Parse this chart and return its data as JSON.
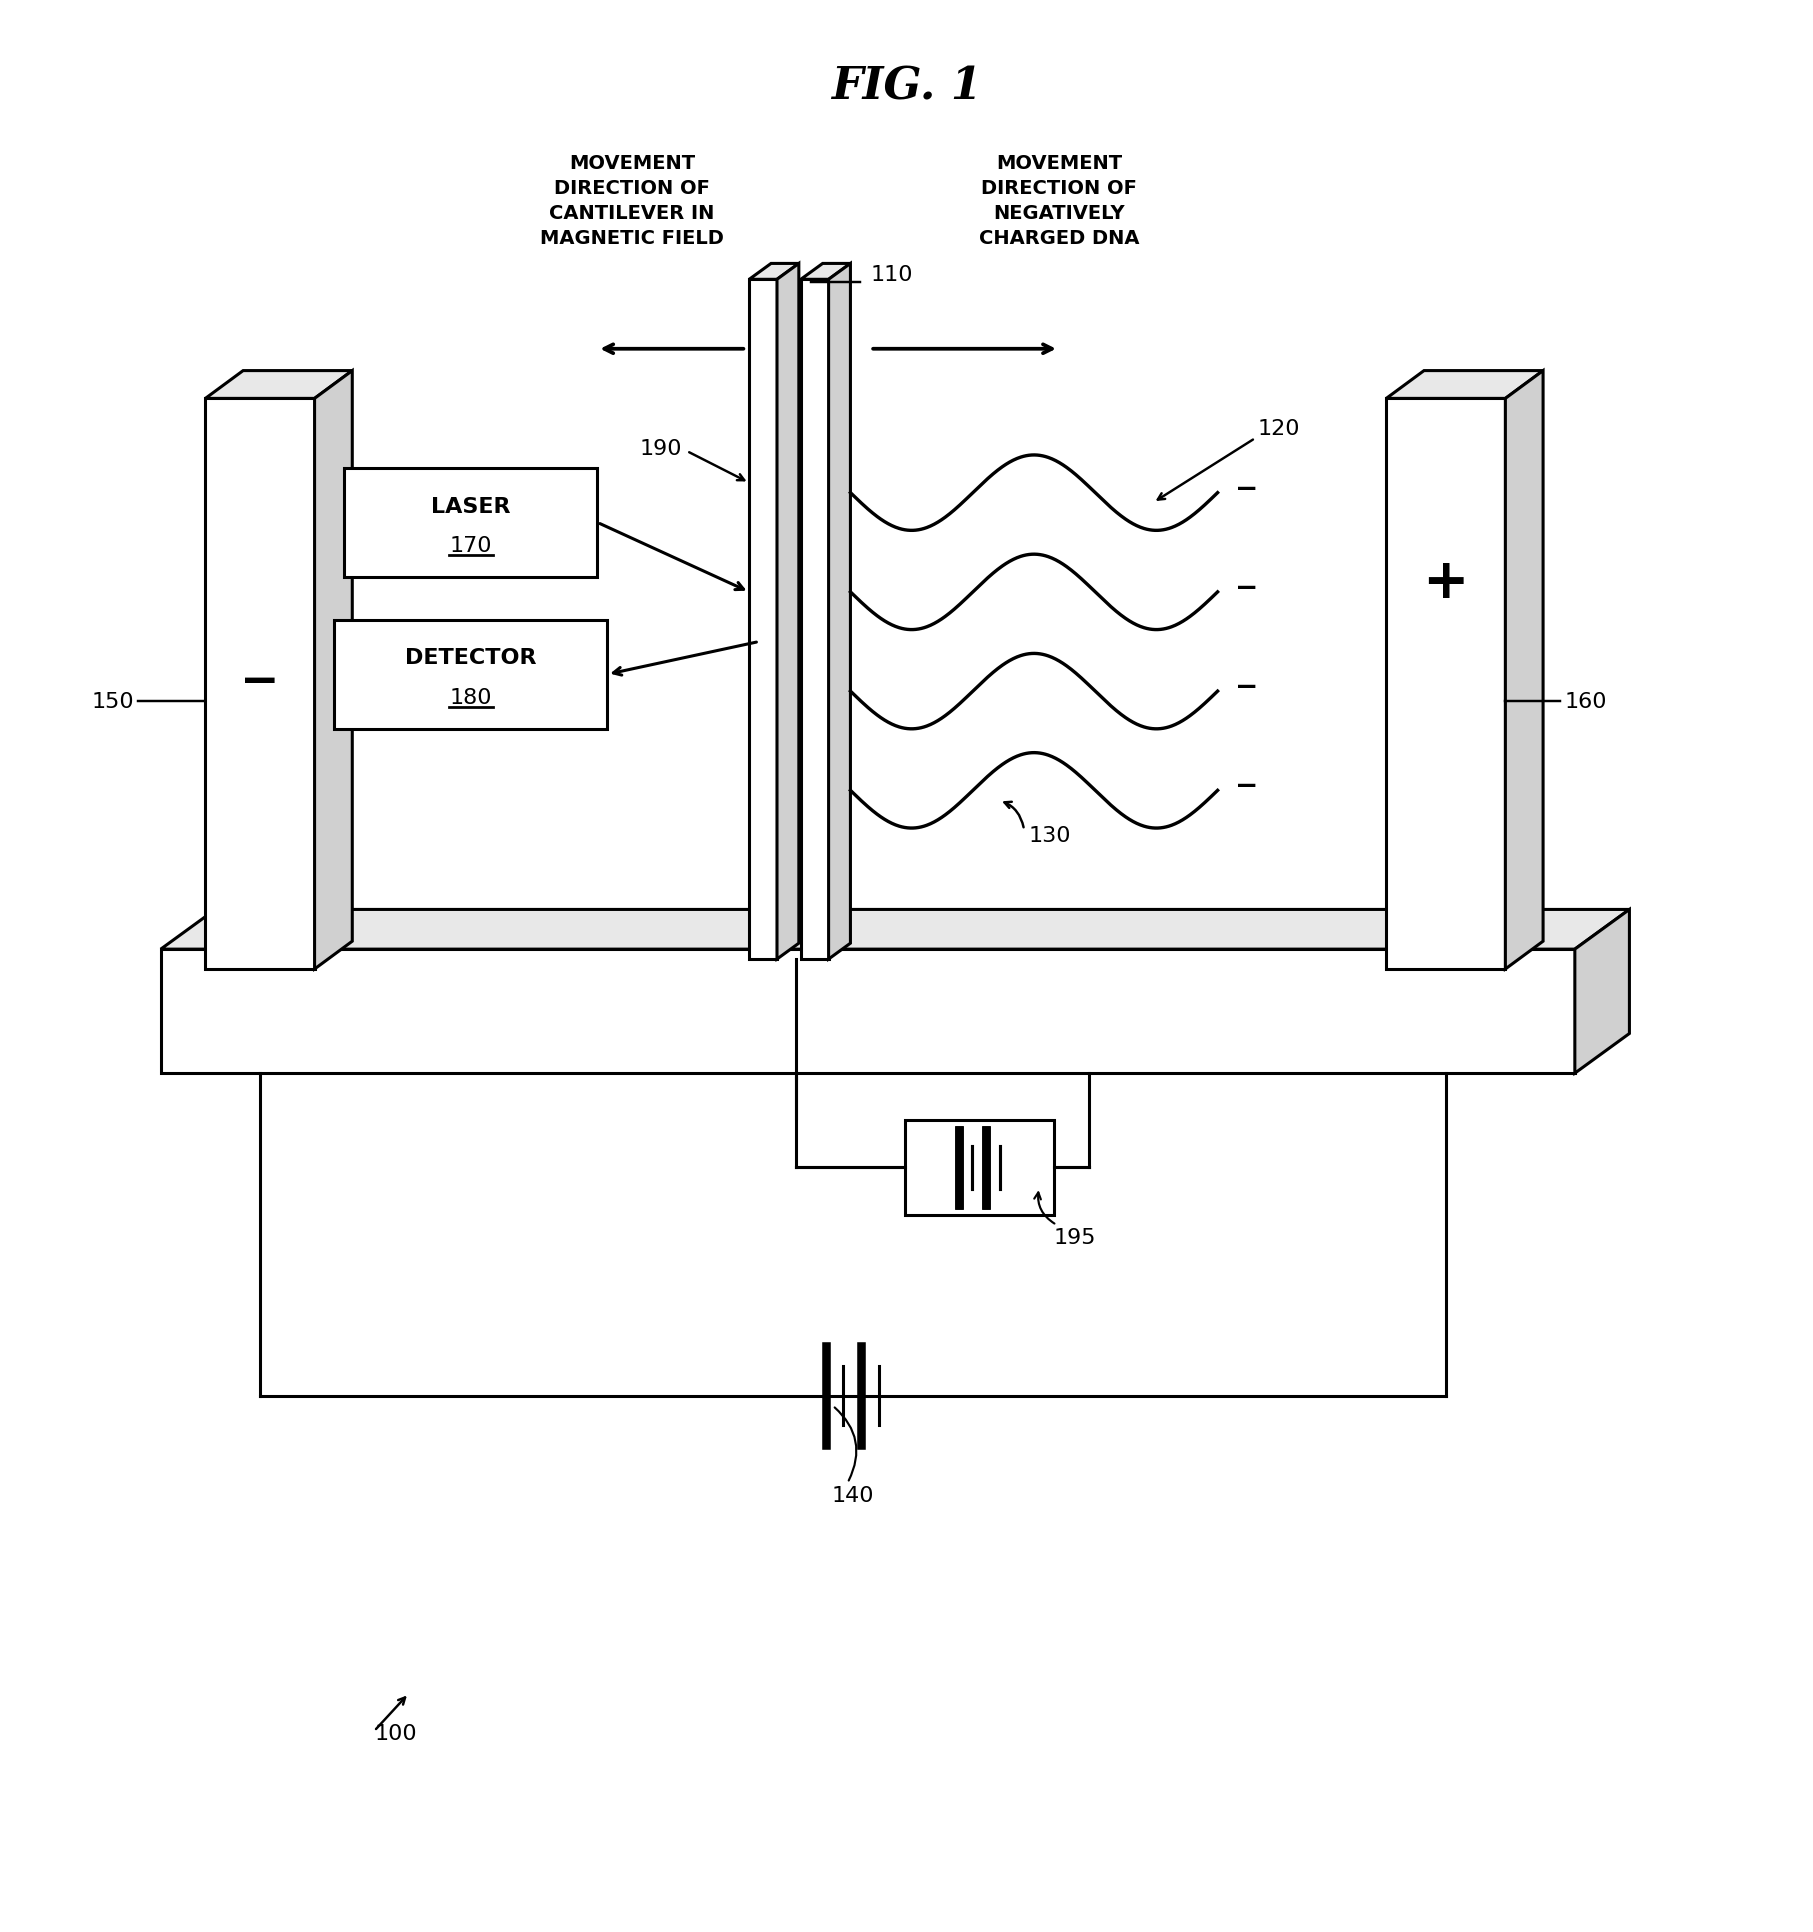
{
  "title": "FIG. 1",
  "bg_color": "#ffffff",
  "line_color": "#000000",
  "fig_width": 18.13,
  "fig_height": 19.33,
  "dpi": 100,
  "labels": {
    "movement_cantilever": "MOVEMENT\nDIRECTION OF\nCANTILEVER IN\nMAGNETIC FIELD",
    "movement_dna": "MOVEMENT\nDIRECTION OF\nNEGATIVELY\nCHARGED DNA",
    "ref_100": "100",
    "ref_110": "110",
    "ref_120": "120",
    "ref_130": "130",
    "ref_140": "140",
    "ref_150": "150",
    "ref_160": "160",
    "ref_190": "190",
    "ref_195": "195"
  }
}
